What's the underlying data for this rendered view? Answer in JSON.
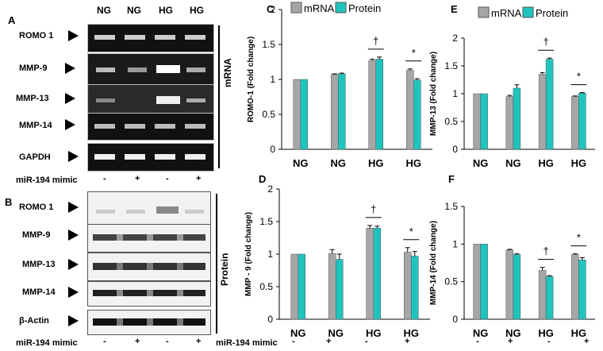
{
  "panel_letters": {
    "A": "A",
    "B": "B",
    "C": "C",
    "D": "D",
    "E": "E",
    "F": "F"
  },
  "gel": {
    "column_headers": [
      "NG",
      "NG",
      "HG",
      "HG"
    ],
    "side_label_mrna": "mRNA",
    "side_label_protein": "Protein",
    "mrna_bands": [
      "ROMO 1",
      "MMP-9",
      "MMP-13",
      "MMP-14",
      "GAPDH"
    ],
    "protein_bands": [
      "ROMO 1",
      "MMP-9",
      "MMP-13",
      "MMP-14",
      "β-Actin"
    ],
    "mimic_label": "miR-194 mimic",
    "mimic_values": [
      "-",
      "+",
      "-",
      "+"
    ]
  },
  "colors": {
    "mrna": "#a6a6a6",
    "protein": "#1fc4bf"
  },
  "legend": {
    "mrna": "mRNA",
    "protein": "Protein"
  },
  "bottom_mimic": {
    "label": "miR-194 mimic",
    "values": [
      "-",
      "+",
      "-",
      "+"
    ]
  },
  "chart_data": [
    {
      "panel": "C",
      "type": "bar",
      "categories": [
        "NG",
        "NG",
        "HG",
        "HG"
      ],
      "series": [
        {
          "name": "mRNA",
          "values": [
            1.0,
            1.07,
            1.27,
            1.13
          ],
          "errors": [
            0.0,
            0.01,
            0.02,
            0.02
          ]
        },
        {
          "name": "Protein",
          "values": [
            1.0,
            1.08,
            1.29,
            0.99
          ],
          "errors": [
            0.0,
            0.01,
            0.03,
            0.02
          ]
        }
      ],
      "ylabel": "ROMO-1 (Fold change)",
      "ylim": [
        0,
        2
      ],
      "yticks": [
        "0",
        "0.5",
        "1",
        "1.5",
        "2"
      ],
      "marks": [
        "†",
        "*"
      ],
      "legend": "top"
    },
    {
      "panel": "D",
      "type": "bar",
      "categories": [
        "NG",
        "NG",
        "HG",
        "HG"
      ],
      "series": [
        {
          "name": "mRNA",
          "values": [
            1.0,
            1.01,
            1.4,
            1.03
          ],
          "errors": [
            0.0,
            0.06,
            0.04,
            0.07
          ]
        },
        {
          "name": "Protein",
          "values": [
            1.0,
            0.92,
            1.4,
            0.97
          ],
          "errors": [
            0.0,
            0.08,
            0.03,
            0.07
          ]
        }
      ],
      "ylabel": "MMP - 9 (Fold change)",
      "ylim": [
        0,
        2
      ],
      "yticks": [
        "0",
        "0.5",
        "1",
        "1.5",
        "2"
      ],
      "marks": [
        "†",
        "*"
      ]
    },
    {
      "panel": "E",
      "type": "bar",
      "categories": [
        "NG",
        "NG",
        "HG",
        "HG"
      ],
      "series": [
        {
          "name": "mRNA",
          "values": [
            1.0,
            0.95,
            1.35,
            0.95
          ],
          "errors": [
            0.0,
            0.02,
            0.03,
            0.01
          ]
        },
        {
          "name": "Protein",
          "values": [
            1.0,
            1.1,
            1.62,
            1.01
          ],
          "errors": [
            0.0,
            0.06,
            0.02,
            0.01
          ]
        }
      ],
      "ylabel": "MMP-13 (Fold change)",
      "ylim": [
        0,
        2
      ],
      "yticks": [
        "0",
        "0.5",
        "1",
        "1.5",
        "2"
      ],
      "marks": [
        "†",
        "*"
      ],
      "legend": "top"
    },
    {
      "panel": "F",
      "type": "bar",
      "categories": [
        "NG",
        "NG",
        "HG",
        "HG"
      ],
      "series": [
        {
          "name": "mRNA",
          "values": [
            1.0,
            0.92,
            0.65,
            0.86
          ],
          "errors": [
            0.0,
            0.01,
            0.04,
            0.01
          ]
        },
        {
          "name": "Protein",
          "values": [
            1.0,
            0.86,
            0.57,
            0.79
          ],
          "errors": [
            0.0,
            0.01,
            0.01,
            0.03
          ]
        }
      ],
      "ylabel": "MMP-14 (Fold change)",
      "ylim": [
        0,
        1.5
      ],
      "yticks": [
        "0",
        "0.5",
        "1",
        "1.5"
      ],
      "marks": [
        "†",
        "*"
      ]
    }
  ]
}
